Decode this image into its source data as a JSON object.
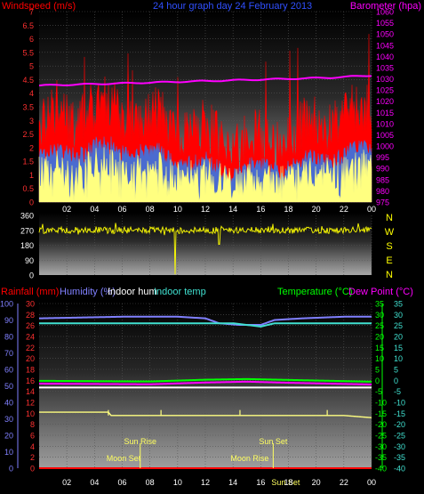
{
  "chart_data": [
    {
      "type": "line",
      "title": "24 hour graph day  24 February 2013",
      "left_axis": {
        "label": "Windspeed (m/s)",
        "ticks": [
          "0",
          "0.5",
          "1",
          "1.5",
          "2",
          "2.5",
          "3",
          "3.5",
          "4",
          "4.5",
          "5",
          "5.5",
          "6",
          "6.5",
          "7"
        ],
        "range": [
          0,
          7
        ],
        "color": "#ff0000"
      },
      "right_axis": {
        "label": "Barometer (hpa)",
        "ticks": [
          "975",
          "980",
          "985",
          "990",
          "995",
          "1000",
          "1005",
          "1010",
          "1015",
          "1020",
          "1025",
          "1030",
          "1035",
          "1040",
          "1045",
          "1050",
          "1055",
          "1060"
        ],
        "range": [
          975,
          1060
        ],
        "color": "#ff00ff"
      },
      "x_ticks": [
        "02",
        "04",
        "06",
        "08",
        "10",
        "12",
        "14",
        "16",
        "18",
        "20",
        "22",
        "00"
      ],
      "grid": true,
      "series": [
        {
          "name": "Windspeed (m/s)",
          "kind": "wind gust",
          "color": "#ff0000",
          "summary": {
            "min": 0.5,
            "typical": 2.5,
            "max": 6.7
          }
        },
        {
          "name": "",
          "kind": "average wind",
          "color": "#4a6bd0",
          "summary": {
            "min": 0.4,
            "typical": 1.8,
            "max": 3.5
          }
        },
        {
          "name": "",
          "kind": "wind low",
          "color": "#ffff80",
          "summary": {
            "min": 0,
            "typical": 1.2,
            "max": 2.5
          }
        },
        {
          "name": "Barometer (hpa)",
          "kind": "pressure",
          "color": "#ff00ff",
          "x": [
            0,
            3,
            6,
            9,
            12,
            15,
            18,
            21,
            24
          ],
          "values": [
            1027,
            1027.5,
            1028,
            1028.5,
            1029,
            1029.5,
            1030,
            1030.5,
            1031.5
          ]
        }
      ]
    },
    {
      "type": "line",
      "title": "",
      "left_axis": {
        "ticks": [
          "0",
          "90",
          "180",
          "270",
          "360"
        ],
        "range": [
          0,
          360
        ],
        "color": "#ffffff"
      },
      "compass": [
        "N",
        "W",
        "S",
        "E",
        "N"
      ],
      "x_ticks": [
        "02",
        "04",
        "06",
        "08",
        "10",
        "12",
        "14",
        "16",
        "18",
        "20",
        "22",
        "00"
      ],
      "series": [
        {
          "name": "",
          "kind": "wind direction",
          "color": "#ffff00",
          "typical": 270,
          "range": [
            235,
            320
          ],
          "spikes": [
            {
              "x": 9.8,
              "value": 5
            },
            {
              "x": 13.0,
              "value": 185
            }
          ]
        }
      ]
    },
    {
      "type": "line",
      "title": "",
      "top_labels": {
        "rainfall": "Rainfall (mm)",
        "humidity": "Humidity (%)",
        "indoor_hum": "Indoor hum",
        "indoor_temp": "Indoor temp",
        "temperature": "Temperature (°C)",
        "dew_point": "Dew Point (°C)"
      },
      "axis_humidity": {
        "ticks": [
          "0",
          "10",
          "20",
          "30",
          "40",
          "50",
          "60",
          "70",
          "80",
          "90",
          "100"
        ],
        "range": [
          0,
          100
        ]
      },
      "axis_rain": {
        "ticks": [
          "0",
          "2",
          "4",
          "6",
          "8",
          "10",
          "12",
          "14",
          "16",
          "18",
          "20",
          "22",
          "24",
          "26",
          "28",
          "30"
        ],
        "range": [
          0,
          30
        ]
      },
      "axis_temp": {
        "ticks": [
          "-40",
          "-35",
          "-30",
          "-25",
          "-20",
          "-15",
          "-10",
          "-5",
          "0",
          "5",
          "10",
          "15",
          "20",
          "25",
          "30",
          "35"
        ],
        "range": [
          -40,
          35
        ]
      },
      "x_ticks": [
        "02",
        "04",
        "06",
        "08",
        "10",
        "12",
        "14",
        "16",
        "18",
        "20",
        "22",
        "00"
      ],
      "annotations": {
        "sun_rise": "Sun Rise",
        "sun_set": "Sun Set",
        "moon_set": "Moon Set",
        "moon_rise": "Moon Rise",
        "sun_set_2": "Sun Set"
      },
      "series": [
        {
          "name": "Humidity (%)",
          "color": "#8080ff",
          "axis": "humidity",
          "x": [
            0,
            6,
            10,
            12,
            13,
            14.5,
            16,
            17,
            19,
            22,
            24
          ],
          "values": [
            91,
            92,
            92,
            91,
            88,
            87,
            87,
            90,
            91,
            92,
            92
          ]
        },
        {
          "name": "Indoor hum",
          "color": "#ffffff",
          "axis": "humidity",
          "x": [
            0,
            24
          ],
          "values": [
            49,
            49
          ]
        },
        {
          "name": "Indoor temp",
          "color": "#40e0d0",
          "axis": "temp",
          "x": [
            0,
            10,
            14,
            16,
            17,
            24
          ],
          "values": [
            26,
            26,
            26,
            24.5,
            26,
            26
          ]
        },
        {
          "name": "Temperature (°C)",
          "color": "#00ff00",
          "axis": "temp",
          "x": [
            0,
            8,
            12,
            15,
            18,
            24
          ],
          "values": [
            -0.2,
            -0.5,
            0.3,
            0.6,
            0.2,
            -0.6
          ]
        },
        {
          "name": "Dew Point (°C)",
          "color": "#ff00ff",
          "axis": "temp",
          "x": [
            0,
            8,
            12,
            15,
            18,
            24
          ],
          "values": [
            -1.5,
            -1.8,
            -1,
            -0.6,
            -1.1,
            -1.9
          ]
        },
        {
          "name": "Rainfall (mm)",
          "color": "#ff0000",
          "axis": "rain",
          "x": [
            0,
            24
          ],
          "values": [
            0,
            0
          ]
        },
        {
          "name": "",
          "kind": "rain rate",
          "color": "#ffff80",
          "axis": "rain",
          "x": [
            0,
            5,
            5.2,
            11.5,
            13,
            14.5,
            17,
            22,
            24
          ],
          "values": [
            10.2,
            10.2,
            9.6,
            9.6,
            9.6,
            9.6,
            9.6,
            9.6,
            9.2
          ]
        }
      ]
    }
  ]
}
